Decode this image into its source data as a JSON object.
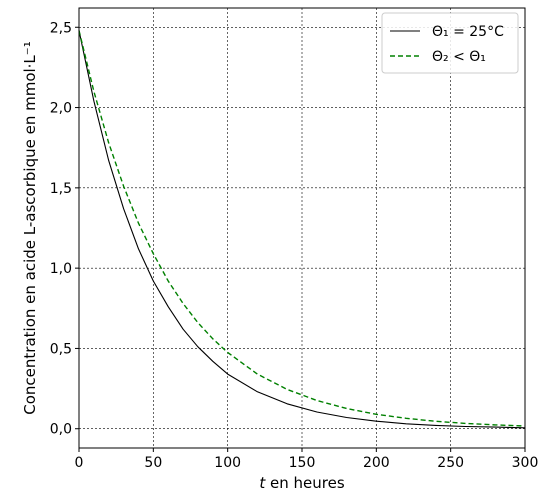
{
  "chart_data": {
    "type": "line",
    "xlabel_italic": "t",
    "xlabel_rest": " en heures",
    "ylabel": "Concentration en acide L-ascorbique en mmol·L⁻¹",
    "xlim": [
      0,
      300
    ],
    "ylim": [
      -0.12,
      2.62
    ],
    "xticks": [
      0,
      50,
      100,
      150,
      200,
      250,
      300
    ],
    "xtick_labels": [
      "0",
      "50",
      "100",
      "150",
      "200",
      "250",
      "300"
    ],
    "yticks": [
      0.0,
      0.5,
      1.0,
      1.5,
      2.0,
      2.5
    ],
    "ytick_labels": [
      "0,0",
      "0,5",
      "1,0",
      "1,5",
      "2,0",
      "2,5"
    ],
    "grid": true,
    "legend_position": "top-right",
    "series": [
      {
        "name": "Θ₁ = 25°C",
        "color": "#000000",
        "dash": "solid",
        "x": [
          0,
          10,
          20,
          30,
          40,
          50,
          60,
          70,
          80,
          90,
          100,
          120,
          140,
          160,
          180,
          200,
          220,
          240,
          260,
          280,
          300
        ],
        "y": [
          2.48,
          2.04,
          1.67,
          1.37,
          1.12,
          0.92,
          0.76,
          0.62,
          0.51,
          0.42,
          0.34,
          0.23,
          0.155,
          0.104,
          0.07,
          0.047,
          0.031,
          0.021,
          0.014,
          0.01,
          0.006
        ]
      },
      {
        "name": "Θ₂ < Θ₁",
        "color": "#008000",
        "dash": "dashed",
        "x": [
          0,
          10,
          20,
          30,
          40,
          50,
          60,
          70,
          80,
          90,
          100,
          120,
          140,
          160,
          180,
          200,
          220,
          240,
          260,
          280,
          300
        ],
        "y": [
          2.48,
          2.1,
          1.78,
          1.51,
          1.28,
          1.09,
          0.92,
          0.78,
          0.66,
          0.56,
          0.475,
          0.34,
          0.245,
          0.176,
          0.126,
          0.09,
          0.065,
          0.046,
          0.033,
          0.024,
          0.017
        ]
      }
    ]
  }
}
